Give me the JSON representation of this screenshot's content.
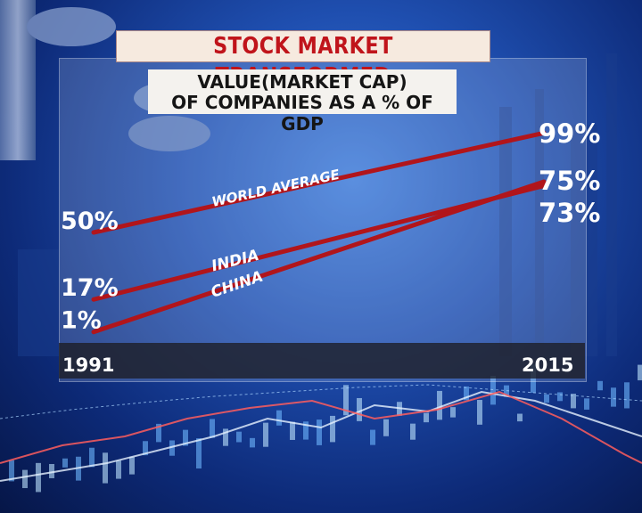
{
  "title": "STOCK MARKET TRANSFORMED",
  "subtitle_line1": "VALUE(MARKET CAP)",
  "subtitle_line2": "OF COMPANIES AS A % OF GDP",
  "colors": {
    "title_text": "#c0141b",
    "line": "#b1151b",
    "label_text": "#ffffff"
  },
  "chart_data": {
    "type": "line",
    "title": "STOCK MARKET TRANSFORMED",
    "subtitle": "VALUE(MARKET CAP) OF COMPANIES AS A % OF GDP",
    "x": [
      1991,
      2015
    ],
    "x_tick_labels": [
      "1991",
      "2015"
    ],
    "unit": "%",
    "grid": false,
    "legend": "inline labels",
    "series": [
      {
        "name": "WORLD AVERAGE",
        "values": [
          50,
          99
        ],
        "labels": [
          "50%",
          "99%"
        ]
      },
      {
        "name": "INDIA",
        "values": [
          17,
          73
        ],
        "labels": [
          "17%",
          "73%"
        ]
      },
      {
        "name": "CHINA",
        "values": [
          1,
          75
        ],
        "labels": [
          "1%",
          "75%"
        ]
      }
    ]
  }
}
